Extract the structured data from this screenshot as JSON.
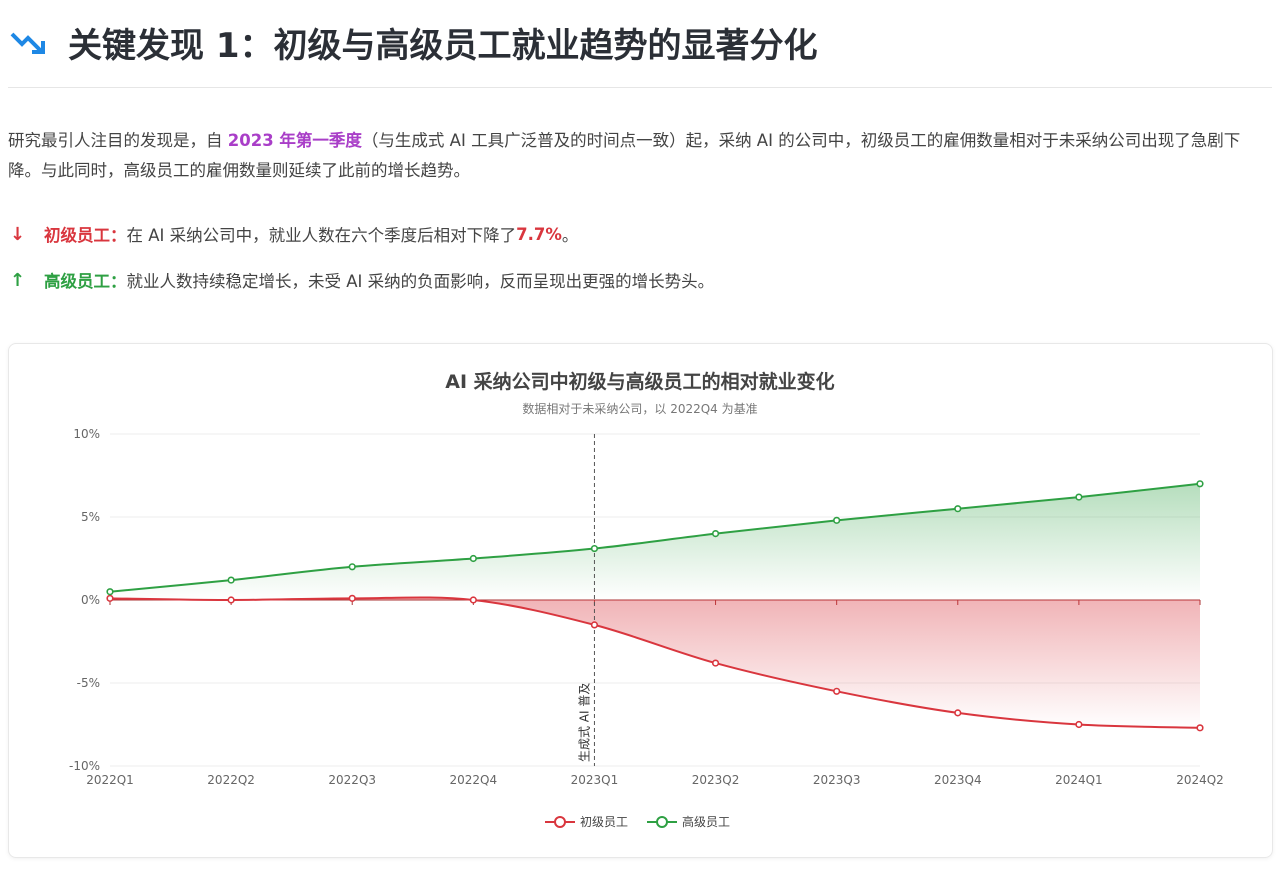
{
  "header": {
    "title": "关键发现 1：初级与高级员工就业趋势的显著分化",
    "icon": "trending-down-icon",
    "icon_color": "#1e88e5"
  },
  "intro": {
    "part1": "研究最引人注目的发现是，自 ",
    "highlight": "2023 年第一季度",
    "part2": "（与生成式 AI 工具广泛普及的时间点一致）起，采纳 AI 的公司中，初级员工的雇佣数量相对于未采纳公司出现了急剧下降。与此同时，高级员工的雇佣数量则延续了此前的增长趋势。"
  },
  "findings": [
    {
      "icon": "arrow-down-icon",
      "label": "初级员工：",
      "text": "在 AI 采纳公司中，就业人数在六个季度后相对下降了 ",
      "value": "7.7%",
      "tail": "。",
      "color": "#d9363e"
    },
    {
      "icon": "arrow-up-icon",
      "label": "高级员工：",
      "text": "就业人数持续稳定增长，未受 AI 采纳的负面影响，反而呈现出更强的增长势头。",
      "value": "",
      "tail": "",
      "color": "#2ea043"
    }
  ],
  "chart_data": {
    "type": "area",
    "title": "AI 采纳公司中初级与高级员工的相对就业变化",
    "subtitle": "数据相对于未采纳公司，以 2022Q4 为基准",
    "categories": [
      "2022Q1",
      "2022Q2",
      "2022Q3",
      "2022Q4",
      "2023Q1",
      "2023Q2",
      "2023Q3",
      "2023Q4",
      "2024Q1",
      "2024Q2"
    ],
    "ylim": [
      -10,
      10
    ],
    "yticks": [
      10,
      5,
      0,
      -5,
      -10
    ],
    "ytick_labels": [
      "10%",
      "5%",
      "0%",
      "-5%",
      "-10%"
    ],
    "grid": true,
    "legend_position": "bottom",
    "annotation": {
      "category": "2023Q1",
      "label": "生成式 AI 普及"
    },
    "series": [
      {
        "name": "初级员工",
        "color": "#d9363e",
        "values": [
          0.1,
          0.0,
          0.1,
          0.0,
          -1.5,
          -3.8,
          -5.5,
          -6.8,
          -7.5,
          -7.7
        ]
      },
      {
        "name": "高级员工",
        "color": "#2ea043",
        "values": [
          0.5,
          1.2,
          2.0,
          2.5,
          3.1,
          4.0,
          4.8,
          5.5,
          6.2,
          7.0
        ]
      }
    ]
  }
}
